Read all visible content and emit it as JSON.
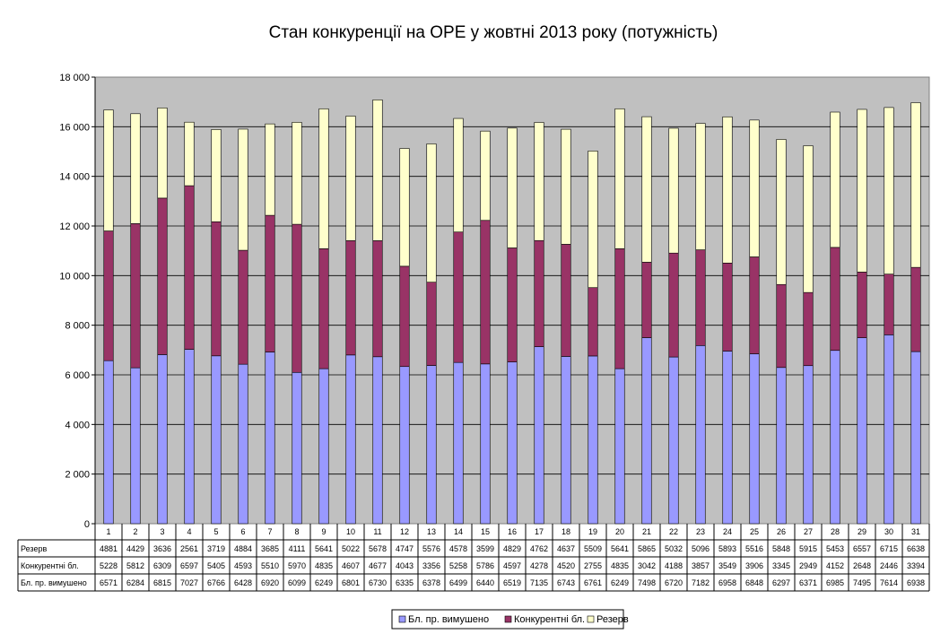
{
  "chart_data": {
    "type": "bar",
    "stacked": true,
    "title": "Стан конкуренції на ОРЕ  у жовтні 2013 року (потужність)",
    "xlabel": "",
    "ylabel": "",
    "ylim": [
      0,
      18000
    ],
    "yticks": [
      0,
      2000,
      4000,
      6000,
      8000,
      10000,
      12000,
      14000,
      16000,
      18000
    ],
    "ytick_labels": [
      "0",
      "2 000",
      "4 000",
      "6 000",
      "8 000",
      "10 000",
      "12 000",
      "14 000",
      "16 000",
      "18 000"
    ],
    "grid": true,
    "legend_position": "bottom",
    "plot_background": "#c0c0c0",
    "categories": [
      "1",
      "2",
      "3",
      "4",
      "5",
      "6",
      "7",
      "8",
      "9",
      "10",
      "11",
      "12",
      "13",
      "14",
      "15",
      "16",
      "17",
      "18",
      "19",
      "20",
      "21",
      "22",
      "23",
      "24",
      "25",
      "26",
      "27",
      "28",
      "29",
      "30",
      "31"
    ],
    "series": [
      {
        "name": "Бл. пр. вимушено",
        "color": "#9999ff",
        "values": [
          6571,
          6284,
          6815,
          7027,
          6766,
          6428,
          6920,
          6099,
          6249,
          6801,
          6730,
          6335,
          6378,
          6499,
          6440,
          6519,
          7135,
          6743,
          6761,
          6249,
          7498,
          6720,
          7182,
          6958,
          6848,
          6297,
          6371,
          6985,
          7495,
          7614,
          6938
        ]
      },
      {
        "name": "Конкурентні бл.",
        "color": "#993366",
        "values": [
          5228,
          5812,
          6309,
          6597,
          5405,
          4593,
          5510,
          5970,
          4835,
          4607,
          4677,
          4043,
          3356,
          5258,
          5786,
          4597,
          4278,
          4520,
          2755,
          4835,
          3042,
          4188,
          3857,
          3549,
          3906,
          3345,
          2949,
          4152,
          2648,
          2446,
          3394
        ]
      },
      {
        "name": "Резерв",
        "color": "#ffffcc",
        "values": [
          4881,
          4429,
          3636,
          2561,
          3719,
          4884,
          3685,
          4111,
          5641,
          5022,
          5678,
          4747,
          5576,
          4578,
          3599,
          4829,
          4762,
          4637,
          5509,
          5641,
          5865,
          5032,
          5096,
          5893,
          5516,
          5848,
          5915,
          5453,
          6557,
          6715,
          6638
        ]
      }
    ],
    "data_table_rows": [
      "Резерв",
      "Конкурентні бл.",
      "Бл. пр. вимушено"
    ]
  }
}
